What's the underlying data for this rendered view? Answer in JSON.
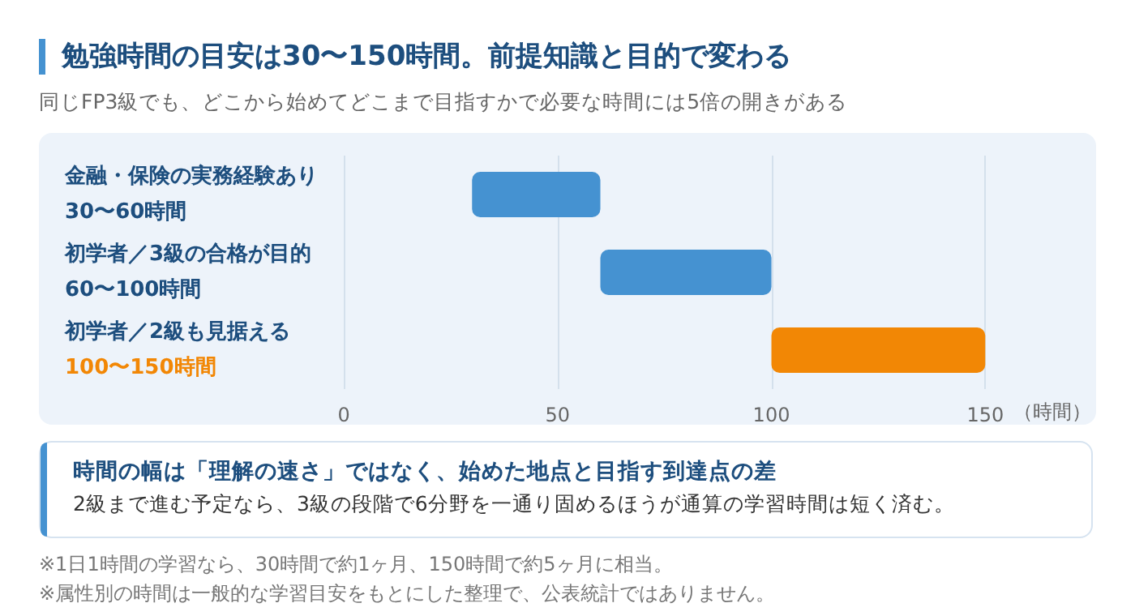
{
  "chart_data": {
    "type": "bar",
    "orientation": "horizontal",
    "title": "勉強時間の目安は30〜150時間。前提知識と目的で変わる",
    "subtitle": "同じFP3級でも、どこから始めてどこまで目指すかで必要な時間には5倍の開きがある",
    "categories": [
      "金融・保険の実務経験あり\n30〜60時間",
      "初学者／3級の合格が目的\n60〜100時間",
      "初学者／2級も見据える\n100〜150時間"
    ],
    "base": [
      30,
      60,
      100
    ],
    "values": [
      30,
      40,
      50
    ],
    "colors": [
      "#4592d1",
      "#4592d1",
      "#f28705"
    ],
    "xlim": [
      0,
      150
    ],
    "xticks": [
      0,
      50,
      100,
      150
    ],
    "xlabel": "（時間）",
    "grid": "x",
    "annotations": [
      "時間の幅は「理解の速さ」ではなく、始めた地点と目指す到達点の差",
      "2級まで進む予定なら、3級の段階で6分野を一通り固めるほうが通算の学習時間は短く済む。",
      "※1日1時間の学習なら、30時間で約1ヶ月、150時間で約5ヶ月に相当。",
      "※属性別の時間は一般的な学習目安をもとにした整理で、公表統計ではありません。"
    ]
  }
}
